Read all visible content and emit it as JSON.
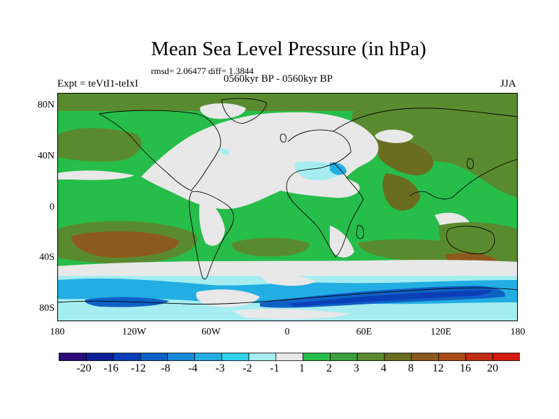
{
  "title": "Mean Sea Level Pressure (in hPa)",
  "stats": "rmsd= 2.06477 diff= 1.3844",
  "experiment": "Expt = teVtI1-teIxI",
  "period": "0560kyr BP - 0560kyr BP",
  "season": "JJA",
  "lat_ticks": [
    "80N",
    "40N",
    "0",
    "40S",
    "80S"
  ],
  "lon_ticks": [
    "180",
    "120W",
    "60W",
    "0",
    "60E",
    "120E",
    "180"
  ],
  "colorbar": {
    "labels": [
      "-20",
      "-16",
      "-12",
      "-8",
      "-4",
      "-3",
      "-2",
      "-1",
      "1",
      "2",
      "3",
      "4",
      "8",
      "12",
      "16",
      "20"
    ],
    "colors": [
      "#2a0a78",
      "#0c1f93",
      "#0b3fb8",
      "#0f61c6",
      "#1689d6",
      "#22aee2",
      "#2fd0e8",
      "#a6edf1",
      "#e8e8e8",
      "#27bd4a",
      "#3d9e3c",
      "#5a8a2f",
      "#6a6d1f",
      "#8c5a1e",
      "#a84a18",
      "#c02b14",
      "#d41b10"
    ]
  },
  "map_colors": {
    "ocean_base": "#27bd4a",
    "pos_moderate": "#3d9e3c",
    "pos_strong": "#5a8a2f",
    "pos_stronger": "#6a6d1f",
    "pos_high": "#8c5a1e",
    "neutral": "#e8e8e8",
    "neg_light": "#a6edf1",
    "neg_mid": "#22aee2",
    "neg_strong": "#0f61c6",
    "neg_deep": "#0b3fb8",
    "coast": "#000000"
  }
}
